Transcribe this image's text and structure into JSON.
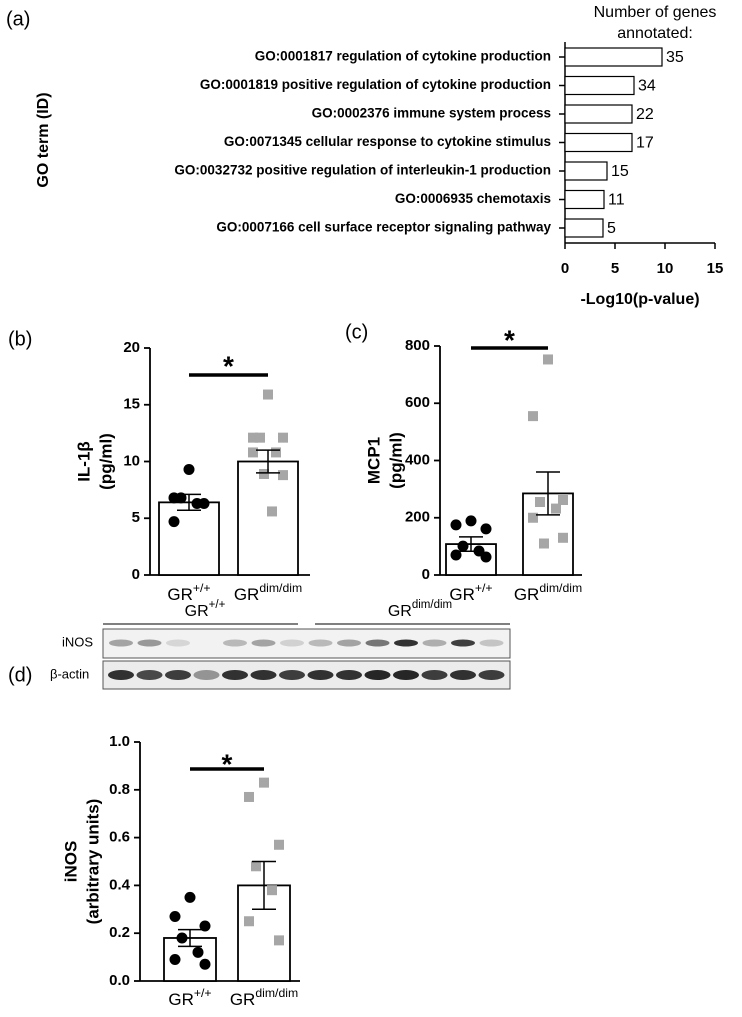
{
  "chart_data": [
    {
      "type": "hbar",
      "panel": "(a)",
      "annotation_title": [
        "Number of genes",
        "annotated:"
      ],
      "ylabel": "GO term (ID)",
      "xlabel": "-Log10(p-value)",
      "categories": [
        "GO:0001817 regulation of cytokine production",
        "GO:0001819 positive regulation of cytokine production",
        "GO:0002376 immune system process",
        "GO:0071345 cellular response to cytokine stimulus",
        "GO:0032732 positive regulation of interleukin-1 production",
        "GO:0006935 chemotaxis",
        "GO:0007166 cell surface receptor signaling pathway"
      ],
      "values": [
        9.7,
        6.9,
        6.7,
        6.7,
        4.2,
        3.9,
        3.8
      ],
      "annotations": [
        35,
        34,
        22,
        17,
        15,
        11,
        5
      ],
      "color": "#ffffff",
      "xlim": [
        0,
        15
      ],
      "xticks": [
        0,
        5,
        10,
        15
      ]
    },
    {
      "type": "bar_scatter",
      "panel": "(b)",
      "ylabel": [
        "IL-1β",
        "(pg/ml)"
      ],
      "categories": [
        "GR",
        "GR"
      ],
      "category_superscripts": [
        "+/+",
        "dim/dim"
      ],
      "values": [
        6.4,
        10.0
      ],
      "errors": [
        0.7,
        1.0
      ],
      "points": [
        [
          9.3,
          6.8,
          6.3,
          6.8,
          6.3,
          4.7
        ],
        [
          15.9,
          12.1,
          12.1,
          12.1,
          10.8,
          10.8,
          8.8,
          8.9,
          5.6
        ]
      ],
      "point_colors": [
        "#000000",
        "#a6a6a6"
      ],
      "markers": [
        "circle",
        "square"
      ],
      "significance": "*",
      "ylim": [
        0,
        20
      ],
      "yticks": [
        0,
        5,
        10,
        15,
        20
      ]
    },
    {
      "type": "bar_scatter",
      "panel": "(c)",
      "ylabel": [
        "MCP1",
        "(pg/ml)"
      ],
      "categories": [
        "GR",
        "GR"
      ],
      "category_superscripts": [
        "+/+",
        "dim/dim"
      ],
      "values": [
        108,
        285
      ],
      "errors": [
        25,
        75
      ],
      "points": [
        [
          189,
          175,
          161,
          101,
          84,
          70,
          63
        ],
        [
          753,
          555,
          262,
          255,
          232,
          200,
          130,
          110
        ]
      ],
      "point_colors": [
        "#000000",
        "#a6a6a6"
      ],
      "markers": [
        "circle",
        "square"
      ],
      "significance": "*",
      "ylim": [
        0,
        800
      ],
      "yticks": [
        0,
        200,
        400,
        600,
        800
      ]
    },
    {
      "type": "bar_scatter",
      "panel": "(d)",
      "ylabel": [
        "iNOS",
        "(arbitrary units)"
      ],
      "blot_rows": [
        "iNOS",
        "β-actin"
      ],
      "categories": [
        "GR",
        "GR"
      ],
      "category_superscripts": [
        "+/+",
        "dim/dim"
      ],
      "values": [
        0.18,
        0.4
      ],
      "errors": [
        0.035,
        0.1
      ],
      "points": [
        [
          0.35,
          0.27,
          0.23,
          0.18,
          0.12,
          0.09,
          0.07
        ],
        [
          0.83,
          0.77,
          0.57,
          0.48,
          0.38,
          0.25,
          0.17
        ]
      ],
      "point_colors": [
        "#000000",
        "#a6a6a6"
      ],
      "markers": [
        "circle",
        "square"
      ],
      "significance": "*",
      "ylim": [
        0,
        1
      ],
      "yticks": [
        {
          "value": 0,
          "label": "0.0"
        },
        0.2,
        0.4,
        0.6,
        0.8,
        {
          "value": 1,
          "label": "1.0"
        }
      ]
    }
  ]
}
